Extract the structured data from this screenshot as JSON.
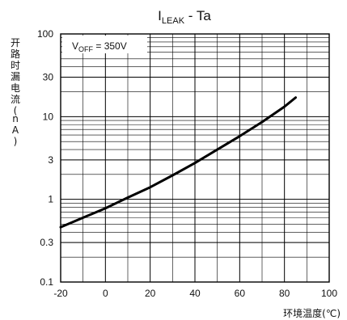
{
  "chart_data": {
    "type": "line",
    "title": {
      "main": "I",
      "sub": "LEAK",
      "rest": " - Ta"
    },
    "annotation": {
      "main": "V",
      "sub": "OFF",
      "rest": " = 350V"
    },
    "xlabel": "环境温度(℃)",
    "ylabel": "开路时漏电流(nA)",
    "xlim": [
      -20,
      100
    ],
    "ylim": [
      0.1,
      100
    ],
    "yscale": "log",
    "grid": true,
    "x_ticks": [
      -20,
      0,
      20,
      40,
      60,
      80,
      100
    ],
    "x_tick_labels": [
      "-20",
      "0",
      "20",
      "40",
      "60",
      "80",
      "100"
    ],
    "y_ticks": [
      0.1,
      0.3,
      1,
      3,
      10,
      30,
      100
    ],
    "y_tick_labels": [
      "0.1",
      "0.3",
      "1",
      "3",
      "10",
      "30",
      "100"
    ],
    "series": [
      {
        "x": [
          -20,
          -10,
          0,
          10,
          20,
          30,
          40,
          50,
          60,
          70,
          80,
          85
        ],
        "y": [
          0.46,
          0.6,
          0.78,
          1.05,
          1.4,
          1.95,
          2.75,
          4.0,
          5.8,
          8.6,
          13.2,
          17.0
        ],
        "color": "#000000"
      }
    ]
  }
}
